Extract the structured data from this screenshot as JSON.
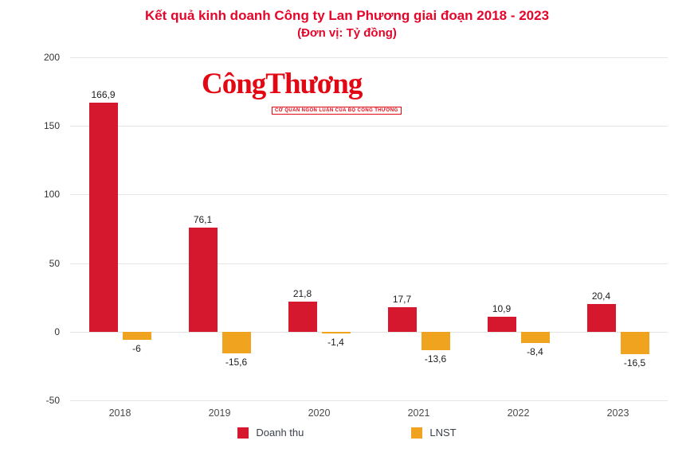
{
  "chart": {
    "title": "Kết quả kinh doanh Công ty Lan Phương giai đoạn 2018 - 2023",
    "subtitle": "(Đơn vị: Tỷ đồng)"
  },
  "logo": {
    "text": "CôngThương",
    "tagline": "CƠ QUAN NGÔN LUẬN CỦA BỘ CÔNG THƯƠNG"
  },
  "legend": [
    {
      "label": "Doanh thu",
      "color": "#d5182d"
    },
    {
      "label": "LNST",
      "color": "#f0a31e"
    }
  ],
  "chart_data": {
    "type": "bar",
    "title": "Kết quả kinh doanh Công ty Lan Phương giai đoạn 2018 - 2023",
    "subtitle": "(Đơn vị: Tỷ đồng)",
    "categories": [
      "2018",
      "2019",
      "2020",
      "2021",
      "2022",
      "2023"
    ],
    "series": [
      {
        "name": "Doanh thu",
        "color": "#d5182d",
        "values": [
          166.9,
          76.1,
          21.8,
          17.7,
          10.9,
          20.4
        ],
        "labels": [
          "166,9",
          "76,1",
          "21,8",
          "17,7",
          "10,9",
          "20,4"
        ]
      },
      {
        "name": "LNST",
        "color": "#f0a31e",
        "values": [
          -6,
          -15.6,
          -1.4,
          -13.6,
          -8.4,
          -16.5
        ],
        "labels": [
          "-6",
          "-15,6",
          "-1,4",
          "-13,6",
          "-8,4",
          "-16,5"
        ]
      }
    ],
    "xlabel": "",
    "ylabel": "",
    "ylim": [
      -50,
      200
    ],
    "yticks": [
      200,
      150,
      100,
      50,
      0,
      -50
    ],
    "grid": true,
    "legend_position": "bottom"
  }
}
